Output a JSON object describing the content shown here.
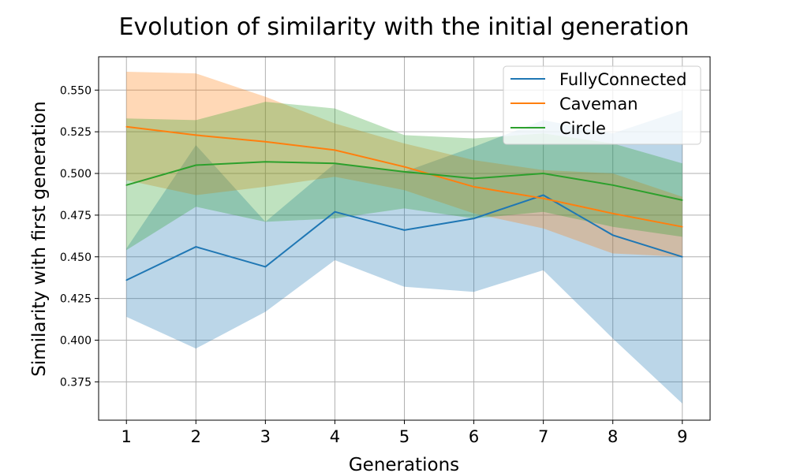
{
  "chart_data": {
    "type": "line",
    "title": "Evolution of similarity with the initial generation",
    "xlabel": "Generations",
    "ylabel": "Similarity with first generation",
    "x": [
      1,
      2,
      3,
      4,
      5,
      6,
      7,
      8,
      9
    ],
    "xlim": [
      0.6,
      9.4
    ],
    "ylim": [
      0.352,
      0.57
    ],
    "xticks": [
      1,
      2,
      3,
      4,
      5,
      6,
      7,
      8,
      9
    ],
    "yticks": [
      0.375,
      0.4,
      0.425,
      0.45,
      0.475,
      0.5,
      0.525,
      0.55
    ],
    "ytick_labels": [
      "0.375",
      "0.400",
      "0.425",
      "0.450",
      "0.475",
      "0.500",
      "0.525",
      "0.550"
    ],
    "grid": true,
    "legend_position": "top-right",
    "series": [
      {
        "name": "FullyConnected",
        "color": "#1f77b4",
        "values": [
          0.436,
          0.456,
          0.444,
          0.477,
          0.466,
          0.473,
          0.487,
          0.463,
          0.45
        ],
        "upper": [
          0.455,
          0.517,
          0.471,
          0.506,
          0.501,
          0.516,
          0.532,
          0.524,
          0.538
        ],
        "lower": [
          0.414,
          0.395,
          0.417,
          0.448,
          0.432,
          0.429,
          0.442,
          0.401,
          0.362
        ]
      },
      {
        "name": "Caveman",
        "color": "#ff7f0e",
        "values": [
          0.528,
          0.523,
          0.519,
          0.514,
          0.504,
          0.492,
          0.485,
          0.476,
          0.468
        ],
        "upper": [
          0.561,
          0.56,
          0.546,
          0.53,
          0.518,
          0.508,
          0.502,
          0.5,
          0.486
        ],
        "lower": [
          0.496,
          0.487,
          0.492,
          0.498,
          0.49,
          0.476,
          0.467,
          0.452,
          0.45
        ]
      },
      {
        "name": "Circle",
        "color": "#2ca02c",
        "values": [
          0.493,
          0.505,
          0.507,
          0.506,
          0.501,
          0.497,
          0.5,
          0.493,
          0.484
        ],
        "upper": [
          0.533,
          0.532,
          0.543,
          0.539,
          0.523,
          0.521,
          0.524,
          0.518,
          0.506
        ],
        "lower": [
          0.454,
          0.48,
          0.471,
          0.473,
          0.479,
          0.473,
          0.477,
          0.468,
          0.462
        ]
      }
    ]
  }
}
